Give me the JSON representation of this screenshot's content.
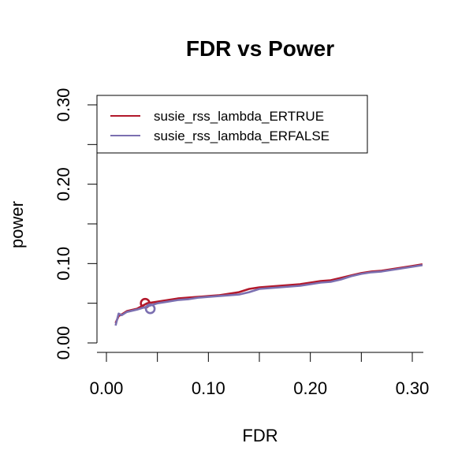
{
  "chart_data": {
    "type": "line",
    "title": "FDR vs Power",
    "xlabel": "FDR",
    "ylabel": "power",
    "xlim": [
      0.0,
      0.31
    ],
    "ylim": [
      0.0,
      0.3
    ],
    "xticks": [
      "0.00",
      "0.10",
      "0.20",
      "0.30"
    ],
    "yticks": [
      "0.00",
      "0.10",
      "0.20",
      "0.30"
    ],
    "grid": false,
    "legend_position": "top-left",
    "series": [
      {
        "name": "susie_rss_lambda_ERTRUE",
        "color": "#B2182B",
        "x": [
          0.009,
          0.012,
          0.015,
          0.02,
          0.03,
          0.04,
          0.05,
          0.06,
          0.07,
          0.08,
          0.09,
          0.1,
          0.11,
          0.12,
          0.13,
          0.14,
          0.15,
          0.16,
          0.17,
          0.18,
          0.19,
          0.2,
          0.21,
          0.22,
          0.23,
          0.24,
          0.25,
          0.26,
          0.27,
          0.28,
          0.29,
          0.3,
          0.31
        ],
        "y": [
          0.025,
          0.034,
          0.036,
          0.04,
          0.043,
          0.05,
          0.052,
          0.054,
          0.056,
          0.057,
          0.058,
          0.059,
          0.06,
          0.062,
          0.064,
          0.068,
          0.07,
          0.071,
          0.072,
          0.073,
          0.074,
          0.076,
          0.078,
          0.079,
          0.082,
          0.085,
          0.088,
          0.09,
          0.091,
          0.093,
          0.095,
          0.097,
          0.099
        ],
        "endpoint": {
          "x": 0.038,
          "y": 0.05
        }
      },
      {
        "name": "susie_rss_lambda_ERFALSE",
        "color": "#7B6FB0",
        "x": [
          0.009,
          0.012,
          0.015,
          0.02,
          0.03,
          0.04,
          0.05,
          0.06,
          0.07,
          0.08,
          0.09,
          0.1,
          0.11,
          0.12,
          0.13,
          0.14,
          0.15,
          0.16,
          0.17,
          0.18,
          0.19,
          0.2,
          0.21,
          0.22,
          0.23,
          0.24,
          0.25,
          0.26,
          0.27,
          0.28,
          0.29,
          0.3,
          0.31
        ],
        "y": [
          0.022,
          0.037,
          0.035,
          0.039,
          0.042,
          0.046,
          0.05,
          0.052,
          0.054,
          0.055,
          0.057,
          0.058,
          0.059,
          0.06,
          0.061,
          0.064,
          0.068,
          0.069,
          0.07,
          0.071,
          0.072,
          0.074,
          0.076,
          0.077,
          0.08,
          0.084,
          0.087,
          0.089,
          0.09,
          0.092,
          0.094,
          0.096,
          0.098
        ],
        "endpoint": {
          "x": 0.043,
          "y": 0.043
        }
      }
    ]
  }
}
